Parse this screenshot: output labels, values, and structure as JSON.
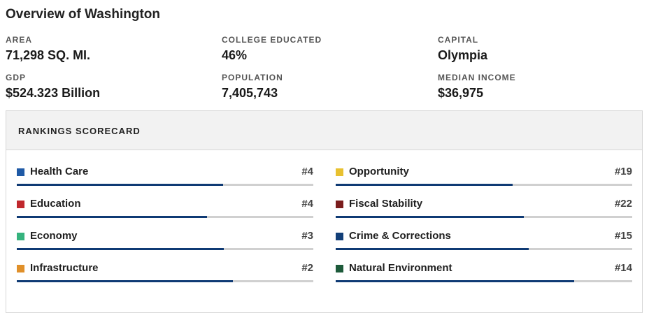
{
  "page": {
    "title": "Overview of Washington"
  },
  "stats": [
    {
      "label": "AREA",
      "value": "71,298 SQ. MI."
    },
    {
      "label": "COLLEGE EDUCATED",
      "value": "46%"
    },
    {
      "label": "CAPITAL",
      "value": "Olympia"
    },
    {
      "label": "GDP",
      "value": "$524.323 Billion"
    },
    {
      "label": "POPULATION",
      "value": "7,405,743"
    },
    {
      "label": "MEDIAN INCOME",
      "value": "$36,975"
    }
  ],
  "scorecard": {
    "title": "RANKINGS SCORECARD",
    "bar_color": "#0f3a74",
    "track_color": "#d0d0d0",
    "items": [
      {
        "label": "Health Care",
        "rank": "#4",
        "swatch": "#1f5aa6",
        "fill": 0.695
      },
      {
        "label": "Opportunity",
        "rank": "#19",
        "swatch": "#e8c130",
        "fill": 0.597
      },
      {
        "label": "Education",
        "rank": "#4",
        "swatch": "#c0282d",
        "fill": 0.641
      },
      {
        "label": "Fiscal Stability",
        "rank": "#22",
        "swatch": "#7a1c1c",
        "fill": 0.634
      },
      {
        "label": "Economy",
        "rank": "#3",
        "swatch": "#36b37e",
        "fill": 0.699
      },
      {
        "label": "Crime & Corrections",
        "rank": "#15",
        "swatch": "#123f78",
        "fill": 0.651
      },
      {
        "label": "Infrastructure",
        "rank": "#2",
        "swatch": "#e0902a",
        "fill": 0.729
      },
      {
        "label": "Natural Environment",
        "rank": "#14",
        "swatch": "#1d5a3a",
        "fill": 0.804
      }
    ]
  }
}
